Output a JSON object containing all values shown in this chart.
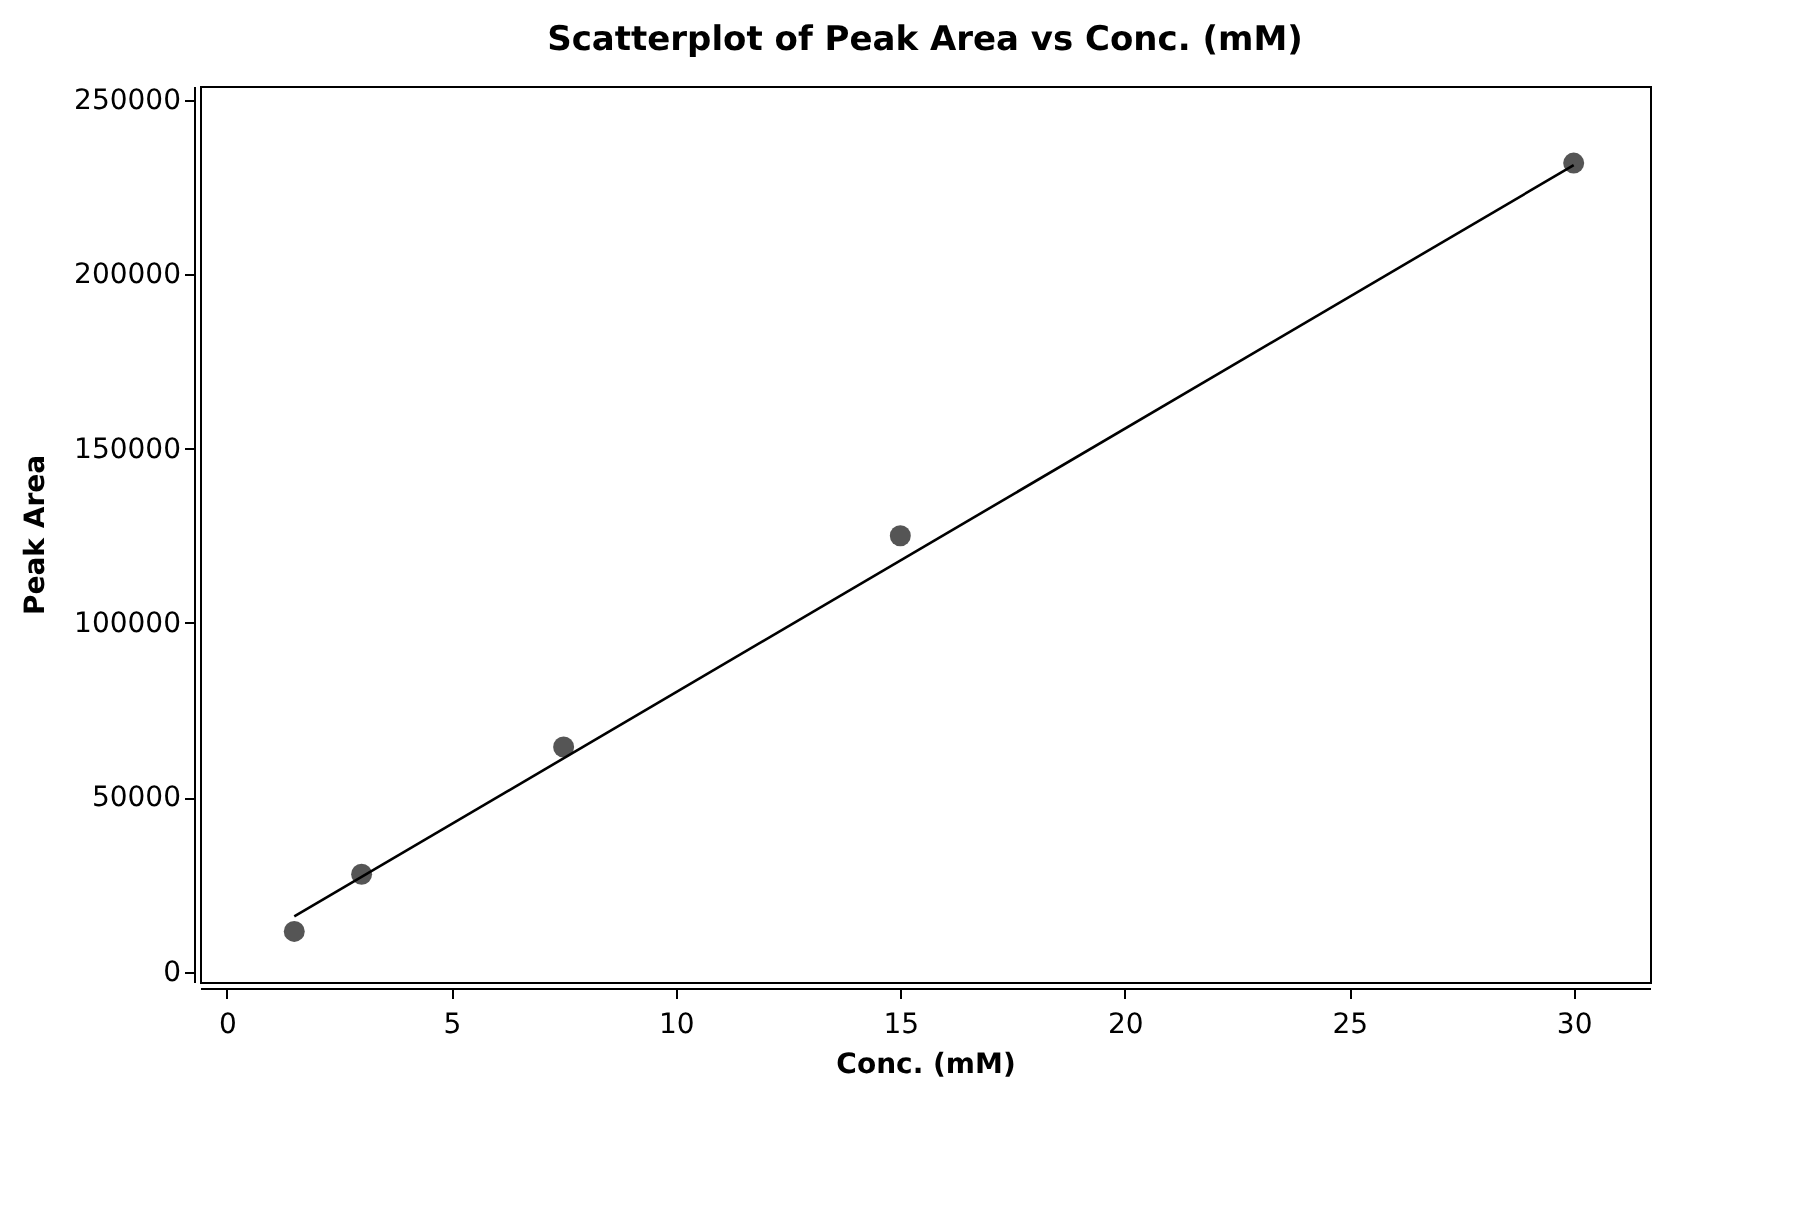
{
  "chart_data": {
    "type": "scatter",
    "title": "Scatterplot of Peak Area vs Conc. (mM)",
    "xlabel": "Conc. (mM)",
    "ylabel": "Peak Area",
    "x": [
      1.5,
      3,
      7.5,
      15,
      30
    ],
    "series": [
      {
        "color": "#555555",
        "marker": "circle",
        "values": [
          11500,
          27900,
          64400,
          125000,
          231900
        ]
      },
      {
        "type": "line",
        "color": "#000000",
        "x": [
          1.5,
          30
        ],
        "values": [
          15800,
          231300
        ]
      }
    ],
    "xlim": [
      -0.6,
      31.7
    ],
    "xticks": [
      0,
      5,
      10,
      15,
      20,
      25,
      30
    ],
    "ylim": [
      -3000,
      254000
    ],
    "yticks": [
      0,
      50000,
      100000,
      150000,
      200000,
      250000
    ],
    "grid": false
  }
}
